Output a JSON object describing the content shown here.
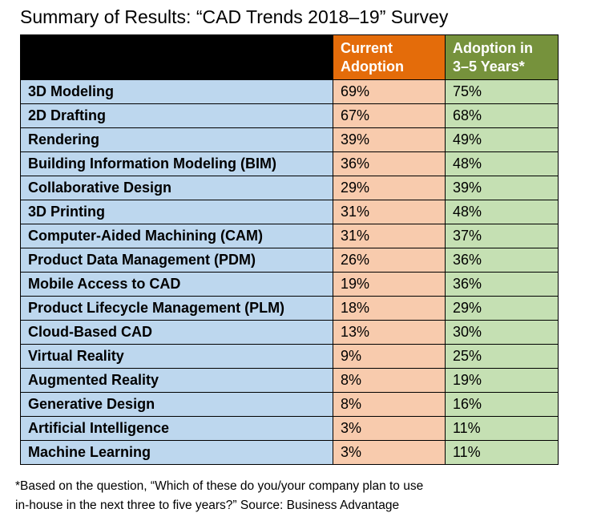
{
  "title": "Summary of Results: “CAD Trends 2018–19” Survey",
  "colors": {
    "header_blank": "#000000",
    "current_header": "#e46c0a",
    "future_header": "#76923c",
    "label_cell": "#bdd7ee",
    "current_cell": "#f8cbad",
    "future_cell": "#c5e0b3"
  },
  "chart_data": {
    "type": "table",
    "title": "Summary of Results: “CAD Trends 2018–19” Survey",
    "columns": [
      {
        "line1": "Current",
        "line2": "Adoption"
      },
      {
        "line1": "Adoption in",
        "line2": "3–5 Years*"
      }
    ],
    "rows": [
      {
        "label": "3D Modeling",
        "current": "69%",
        "future": "75%"
      },
      {
        "label": "2D Drafting",
        "current": "67%",
        "future": "68%"
      },
      {
        "label": "Rendering",
        "current": "39%",
        "future": "49%"
      },
      {
        "label": "Building Information Modeling (BIM)",
        "current": "36%",
        "future": "48%"
      },
      {
        "label": "Collaborative Design",
        "current": "29%",
        "future": "39%"
      },
      {
        "label": "3D Printing",
        "current": "31%",
        "future": "48%"
      },
      {
        "label": "Computer-Aided Machining (CAM)",
        "current": "31%",
        "future": "37%"
      },
      {
        "label": "Product Data Management (PDM)",
        "current": "26%",
        "future": "36%"
      },
      {
        "label": "Mobile Access to CAD",
        "current": "19%",
        "future": "36%"
      },
      {
        "label": "Product Lifecycle Management (PLM)",
        "current": "18%",
        "future": "29%"
      },
      {
        "label": "Cloud-Based CAD",
        "current": "13%",
        "future": "30%"
      },
      {
        "label": "Virtual Reality",
        "current": "9%",
        "future": "25%"
      },
      {
        "label": "Augmented Reality",
        "current": "8%",
        "future": "19%"
      },
      {
        "label": "Generative Design",
        "current": "8%",
        "future": "16%"
      },
      {
        "label": "Artificial Intelligence",
        "current": "3%",
        "future": "11%"
      },
      {
        "label": "Machine Learning",
        "current": "3%",
        "future": "11%"
      }
    ]
  },
  "footnote": {
    "line1": "*Based on the question, “Which of these do you/your company plan to use",
    "line2": "in-house in the next three to five years?” Source: Business Advantage"
  }
}
